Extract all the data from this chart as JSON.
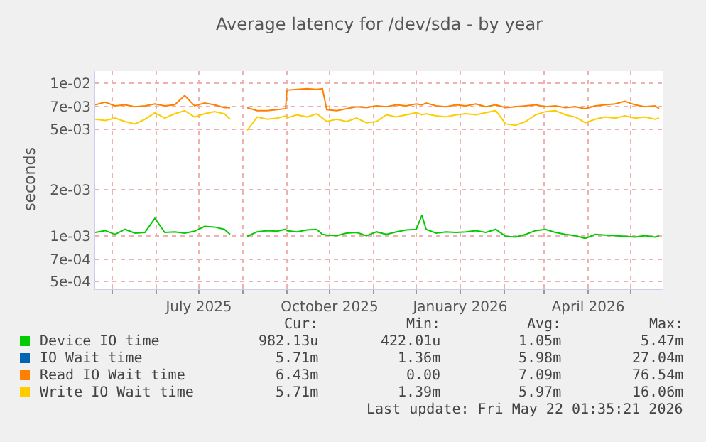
{
  "chart_data": {
    "type": "line",
    "title": "Average latency for /dev/sda - by year",
    "ylabel": "seconds",
    "x": [
      "2025-04-19",
      "2025-04-26",
      "2025-05-03",
      "2025-05-10",
      "2025-05-17",
      "2025-05-24",
      "2025-05-31",
      "2025-06-07",
      "2025-06-14",
      "2025-06-21",
      "2025-06-28",
      "2025-07-05",
      "2025-07-12",
      "2025-07-19",
      "2025-07-23",
      "2025-07-29",
      "2025-08-04",
      "2025-08-11",
      "2025-08-18",
      "2025-08-25",
      "2025-08-31",
      "2025-09-01",
      "2025-09-08",
      "2025-09-15",
      "2025-09-22",
      "2025-09-26",
      "2025-09-29",
      "2025-10-06",
      "2025-10-13",
      "2025-10-20",
      "2025-10-27",
      "2025-11-03",
      "2025-11-10",
      "2025-11-17",
      "2025-11-24",
      "2025-12-01",
      "2025-12-05",
      "2025-12-08",
      "2025-12-15",
      "2025-12-22",
      "2025-12-29",
      "2026-01-05",
      "2026-01-12",
      "2026-01-19",
      "2026-01-26",
      "2026-02-02",
      "2026-02-09",
      "2026-02-16",
      "2026-02-23",
      "2026-03-02",
      "2026-03-09",
      "2026-03-16",
      "2026-03-23",
      "2026-03-30",
      "2026-04-06",
      "2026-04-13",
      "2026-04-20",
      "2026-04-27",
      "2026-05-04",
      "2026-05-11",
      "2026-05-18",
      "2026-05-21"
    ],
    "series": [
      {
        "name": "Device IO time",
        "color": "#00cc00",
        "values": [
          0.00105,
          0.00108,
          0.00102,
          0.0011,
          0.00104,
          0.00105,
          0.0013,
          0.00105,
          0.00106,
          0.00104,
          0.00107,
          0.00115,
          0.00114,
          0.0011,
          0.00102,
          null,
          0.00099,
          0.00106,
          0.00108,
          0.00107,
          0.0011,
          0.00108,
          0.00106,
          0.00109,
          0.0011,
          0.00102,
          0.00101,
          0.001,
          0.00104,
          0.00105,
          0.001,
          0.00106,
          0.00102,
          0.00106,
          0.00109,
          0.0011,
          0.00136,
          0.0011,
          0.00104,
          0.00106,
          0.00105,
          0.00106,
          0.00108,
          0.00105,
          0.0011,
          0.00099,
          0.00098,
          0.00102,
          0.00108,
          0.0011,
          0.00105,
          0.00102,
          0.001,
          0.00096,
          0.00102,
          0.00101,
          0.001,
          0.00099,
          0.00098,
          0.001,
          0.00098,
          0.001
        ]
      },
      {
        "name": "IO Wait time",
        "color": "#0066b3",
        "values": [
          null,
          null,
          null,
          null,
          null,
          null,
          null,
          null,
          null,
          null,
          null,
          null,
          null,
          null,
          null,
          null,
          null,
          null,
          null,
          null,
          null,
          null,
          null,
          null,
          null,
          null,
          null,
          null,
          null,
          null,
          null,
          null,
          null,
          null,
          null,
          null,
          null,
          null,
          null,
          null,
          null,
          null,
          null,
          null,
          null,
          null,
          null,
          null,
          null,
          null,
          null,
          null,
          null,
          null,
          null,
          null,
          null,
          null,
          null,
          null,
          null,
          null
        ]
      },
      {
        "name": "Read IO Wait time",
        "color": "#ff8000",
        "values": [
          0.0072,
          0.0075,
          0.0071,
          0.0072,
          0.007,
          0.0071,
          0.0073,
          0.0071,
          0.0072,
          0.0083,
          0.0071,
          0.0074,
          0.0072,
          0.0069,
          0.0069,
          null,
          0.0069,
          0.0066,
          0.0066,
          0.0067,
          0.0068,
          0.009,
          0.0091,
          0.0092,
          0.0091,
          0.0092,
          0.0067,
          0.0066,
          0.0068,
          0.007,
          0.0069,
          0.0071,
          0.007,
          0.0072,
          0.0071,
          0.0073,
          0.0072,
          0.0074,
          0.0071,
          0.007,
          0.0072,
          0.0071,
          0.0073,
          0.007,
          0.0072,
          0.0069,
          0.007,
          0.0071,
          0.0072,
          0.007,
          0.0071,
          0.0069,
          0.007,
          0.0068,
          0.0071,
          0.0072,
          0.0073,
          0.0076,
          0.0072,
          0.007,
          0.0071,
          0.0068
        ]
      },
      {
        "name": "Write IO Wait time",
        "color": "#ffcc00",
        "values": [
          0.0058,
          0.0057,
          0.0059,
          0.0056,
          0.0054,
          0.0058,
          0.0064,
          0.0059,
          0.0063,
          0.0066,
          0.006,
          0.0063,
          0.0065,
          0.0063,
          0.0058,
          null,
          0.0049,
          0.006,
          0.0058,
          0.0059,
          0.0061,
          0.0059,
          0.0062,
          0.006,
          0.0063,
          0.0059,
          0.0056,
          0.0058,
          0.0056,
          0.0059,
          0.0055,
          0.0056,
          0.0062,
          0.006,
          0.0062,
          0.0064,
          0.0062,
          0.0063,
          0.0061,
          0.006,
          0.0062,
          0.0063,
          0.0062,
          0.0064,
          0.0066,
          0.0054,
          0.0053,
          0.0056,
          0.0062,
          0.0065,
          0.0066,
          0.0062,
          0.006,
          0.0055,
          0.0058,
          0.006,
          0.0059,
          0.0061,
          0.0059,
          0.006,
          0.0058,
          0.0059
        ]
      }
    ],
    "xlim": [
      "2025-04-19",
      "2026-05-24"
    ],
    "xticks": [
      {
        "value": "2025-05-01",
        "label": null
      },
      {
        "value": "2025-06-01",
        "label": null
      },
      {
        "value": "2025-07-01",
        "label": "July 2025"
      },
      {
        "value": "2025-08-01",
        "label": null
      },
      {
        "value": "2025-09-01",
        "label": null
      },
      {
        "value": "2025-10-01",
        "label": "October 2025"
      },
      {
        "value": "2025-11-01",
        "label": null
      },
      {
        "value": "2025-12-01",
        "label": null
      },
      {
        "value": "2026-01-01",
        "label": "January 2026"
      },
      {
        "value": "2026-02-01",
        "label": null
      },
      {
        "value": "2026-03-01",
        "label": null
      },
      {
        "value": "2026-04-01",
        "label": "April 2026"
      },
      {
        "value": "2026-05-01",
        "label": null
      }
    ],
    "ylim": [
      0.00045,
      0.012
    ],
    "yticks": [
      {
        "value": 0.0005,
        "label": "5e-04"
      },
      {
        "value": 0.0007,
        "label": "7e-04"
      },
      {
        "value": 0.001,
        "label": "1e-03"
      },
      {
        "value": 0.002,
        "label": "2e-03"
      },
      {
        "value": 0.005,
        "label": "5e-03"
      },
      {
        "value": 0.007,
        "label": "7e-03"
      },
      {
        "value": 0.01,
        "label": "1e-02"
      }
    ],
    "log": "y",
    "grid": true,
    "legend": "bottom left",
    "line_style": "solid",
    "marker": "none",
    "annotations": [
      "Cur:",
      "Min:",
      "Avg:",
      "Max:",
      "982.13u",
      "422.01u",
      "1.05m",
      "5.47m",
      "5.71m",
      "1.36m",
      "5.98m",
      "27.04m",
      "6.43m",
      "0.00",
      "7.09m",
      "76.54m",
      "5.71m",
      "1.39m",
      "5.97m",
      "16.06m",
      "Last update: Fri May 22 01:35:21 2026"
    ]
  }
}
